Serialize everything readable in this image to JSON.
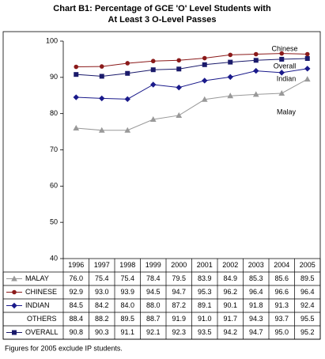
{
  "chart_data": {
    "type": "line",
    "title": [
      "Chart B1:  Percentage of GCE 'O' Level Students with",
      "At Least 3 O-Level Passes"
    ],
    "categories": [
      "1996",
      "1997",
      "1998",
      "1999",
      "2000",
      "2001",
      "2002",
      "2003",
      "2004",
      "2005"
    ],
    "series": [
      {
        "name": "MALAY",
        "color": "#999999",
        "marker": "triangle",
        "values": [
          76.0,
          75.4,
          75.4,
          78.4,
          79.5,
          83.9,
          84.9,
          85.3,
          85.6,
          89.5
        ]
      },
      {
        "name": "CHINESE",
        "color": "#8b1a1a",
        "marker": "circle",
        "values": [
          92.9,
          93.0,
          93.9,
          94.5,
          94.7,
          95.3,
          96.2,
          96.4,
          96.6,
          96.4
        ]
      },
      {
        "name": "INDIAN",
        "color": "#1a1a8b",
        "marker": "diamond",
        "values": [
          84.5,
          84.2,
          84.0,
          88.0,
          87.2,
          89.1,
          90.1,
          91.8,
          91.3,
          92.4
        ]
      },
      {
        "name": "OTHERS",
        "values": [
          88.4,
          88.2,
          89.5,
          88.7,
          91.9,
          91.0,
          91.7,
          94.3,
          93.7,
          95.5
        ]
      },
      {
        "name": "OVERALL",
        "color": "#1a1a6b",
        "marker": "square",
        "values": [
          90.8,
          90.3,
          91.1,
          92.1,
          92.3,
          93.5,
          94.2,
          94.7,
          95.0,
          95.2
        ]
      }
    ],
    "value_labels": [
      [
        "76.0",
        "75.4",
        "75.4",
        "78.4",
        "79.5",
        "83.9",
        "84.9",
        "85.3",
        "85.6",
        "89.5"
      ],
      [
        "92.9",
        "93.0",
        "93.9",
        "94.5",
        "94.7",
        "95.3",
        "96.2",
        "96.4",
        "96.6",
        "96.4"
      ],
      [
        "84.5",
        "84.2",
        "84.0",
        "88.0",
        "87.2",
        "89.1",
        "90.1",
        "91.8",
        "91.3",
        "92.4"
      ],
      [
        "88.4",
        "88.2",
        "89.5",
        "88.7",
        "91.9",
        "91.0",
        "91.7",
        "94.3",
        "93.7",
        "95.5"
      ],
      [
        "90.8",
        "90.3",
        "91.1",
        "92.1",
        "92.3",
        "93.5",
        "94.2",
        "94.7",
        "95.0",
        "95.2"
      ]
    ],
    "annotations": [
      "Chinese",
      "Overall",
      "Indian",
      "Malay"
    ],
    "ylim": [
      40,
      100
    ],
    "yticks": [
      40,
      50,
      60,
      70,
      80,
      90,
      100
    ],
    "footnote": "Figures for 2005 exclude IP students."
  }
}
